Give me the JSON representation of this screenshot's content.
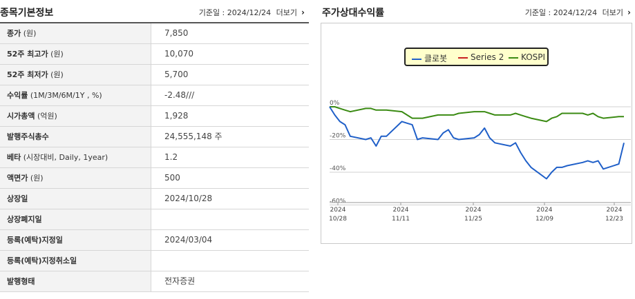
{
  "basic_info": {
    "title": "종목기본정보",
    "date_text": "기준일 : 2024/12/24",
    "more_label": "더보기",
    "rows": [
      {
        "key": "종가",
        "unit": " (원)",
        "value": "7,850"
      },
      {
        "key": "52주 최고가",
        "unit": " (원)",
        "value": "10,070"
      },
      {
        "key": "52주 최저가",
        "unit": " (원)",
        "value": "5,700"
      },
      {
        "key": "수익률",
        "unit": " (1M/3M/6M/1Y , %)",
        "value": "-2.48///"
      },
      {
        "key": "시가총액",
        "unit": " (억원)",
        "value": "1,928"
      },
      {
        "key": "발행주식총수",
        "unit": "",
        "value": "24,555,148 주"
      },
      {
        "key": "베타",
        "unit": " (시장대비, Daily, 1year)",
        "value": "1.2"
      },
      {
        "key": "액면가",
        "unit": " (원)",
        "value": "500"
      },
      {
        "key": "상장일",
        "unit": "",
        "value": "2024/10/28"
      },
      {
        "key": "상장폐지일",
        "unit": "",
        "value": ""
      },
      {
        "key": "등록(예탁)지정일",
        "unit": "",
        "value": "2024/03/04"
      },
      {
        "key": "등록(예탁)지정취소일",
        "unit": "",
        "value": ""
      },
      {
        "key": "발행형태",
        "unit": "",
        "value": "전자증권"
      }
    ]
  },
  "relative_return": {
    "title": "주가상대수익률",
    "date_text": "기준일 : 2024/12/24",
    "more_label": "더보기"
  },
  "chart_data": {
    "type": "line",
    "y_tick_labels": [
      "0%",
      "-20%",
      "-40%",
      "-60%"
    ],
    "ylim": [
      -60,
      0
    ],
    "x_tick_labels": [
      [
        "2024",
        "10/28"
      ],
      [
        "2024",
        "11/11"
      ],
      [
        "2024",
        "11/25"
      ],
      [
        "2024",
        "12/09"
      ],
      [
        "2024",
        "12/23"
      ]
    ],
    "x_start": "2024-10-28",
    "x_end": "2024-12-24",
    "legend_position": "top-center",
    "grid": true,
    "series": [
      {
        "name": "클로봇",
        "color": "#1f5fc8",
        "points": [
          [
            "2024-10-28",
            0
          ],
          [
            "2024-10-29",
            -5
          ],
          [
            "2024-10-30",
            -9
          ],
          [
            "2024-10-31",
            -11
          ],
          [
            "2024-11-01",
            -18
          ],
          [
            "2024-11-04",
            -20
          ],
          [
            "2024-11-05",
            -19
          ],
          [
            "2024-11-06",
            -24
          ],
          [
            "2024-11-07",
            -18
          ],
          [
            "2024-11-08",
            -18
          ],
          [
            "2024-11-11",
            -9
          ],
          [
            "2024-11-12",
            -10
          ],
          [
            "2024-11-13",
            -11
          ],
          [
            "2024-11-14",
            -20
          ],
          [
            "2024-11-15",
            -19
          ],
          [
            "2024-11-18",
            -20
          ],
          [
            "2024-11-19",
            -16
          ],
          [
            "2024-11-20",
            -14
          ],
          [
            "2024-11-21",
            -19
          ],
          [
            "2024-11-22",
            -20
          ],
          [
            "2024-11-25",
            -19
          ],
          [
            "2024-11-26",
            -17
          ],
          [
            "2024-11-27",
            -13
          ],
          [
            "2024-11-28",
            -19
          ],
          [
            "2024-11-29",
            -22
          ],
          [
            "2024-12-02",
            -24
          ],
          [
            "2024-12-03",
            -22
          ],
          [
            "2024-12-04",
            -28
          ],
          [
            "2024-12-05",
            -33
          ],
          [
            "2024-12-06",
            -37
          ],
          [
            "2024-12-09",
            -44
          ],
          [
            "2024-12-10",
            -40
          ],
          [
            "2024-12-11",
            -37
          ],
          [
            "2024-12-12",
            -37
          ],
          [
            "2024-12-13",
            -36
          ],
          [
            "2024-12-16",
            -34
          ],
          [
            "2024-12-17",
            -33
          ],
          [
            "2024-12-18",
            -34
          ],
          [
            "2024-12-19",
            -33
          ],
          [
            "2024-12-20",
            -38
          ],
          [
            "2024-12-23",
            -35
          ],
          [
            "2024-12-24",
            -22
          ]
        ]
      },
      {
        "name": "Series 2",
        "color": "#c81e1e",
        "points": []
      },
      {
        "name": "KOSPI",
        "color": "#3a8a12",
        "points": [
          [
            "2024-10-28",
            0
          ],
          [
            "2024-10-29",
            0
          ],
          [
            "2024-10-30",
            -1
          ],
          [
            "2024-10-31",
            -2
          ],
          [
            "2024-11-01",
            -3
          ],
          [
            "2024-11-04",
            -1
          ],
          [
            "2024-11-05",
            -1
          ],
          [
            "2024-11-06",
            -2
          ],
          [
            "2024-11-07",
            -2
          ],
          [
            "2024-11-08",
            -2
          ],
          [
            "2024-11-11",
            -3
          ],
          [
            "2024-11-12",
            -5
          ],
          [
            "2024-11-13",
            -7
          ],
          [
            "2024-11-14",
            -7
          ],
          [
            "2024-11-15",
            -7
          ],
          [
            "2024-11-18",
            -5
          ],
          [
            "2024-11-19",
            -5
          ],
          [
            "2024-11-20",
            -5
          ],
          [
            "2024-11-21",
            -5
          ],
          [
            "2024-11-22",
            -4
          ],
          [
            "2024-11-25",
            -3
          ],
          [
            "2024-11-26",
            -3
          ],
          [
            "2024-11-27",
            -3
          ],
          [
            "2024-11-28",
            -4
          ],
          [
            "2024-11-29",
            -5
          ],
          [
            "2024-12-02",
            -5
          ],
          [
            "2024-12-03",
            -4
          ],
          [
            "2024-12-04",
            -5
          ],
          [
            "2024-12-05",
            -6
          ],
          [
            "2024-12-06",
            -7
          ],
          [
            "2024-12-09",
            -9
          ],
          [
            "2024-12-10",
            -7
          ],
          [
            "2024-12-11",
            -6
          ],
          [
            "2024-12-12",
            -4
          ],
          [
            "2024-12-13",
            -4
          ],
          [
            "2024-12-16",
            -4
          ],
          [
            "2024-12-17",
            -5
          ],
          [
            "2024-12-18",
            -4
          ],
          [
            "2024-12-19",
            -6
          ],
          [
            "2024-12-20",
            -7
          ],
          [
            "2024-12-23",
            -6
          ],
          [
            "2024-12-24",
            -6
          ]
        ]
      }
    ]
  }
}
